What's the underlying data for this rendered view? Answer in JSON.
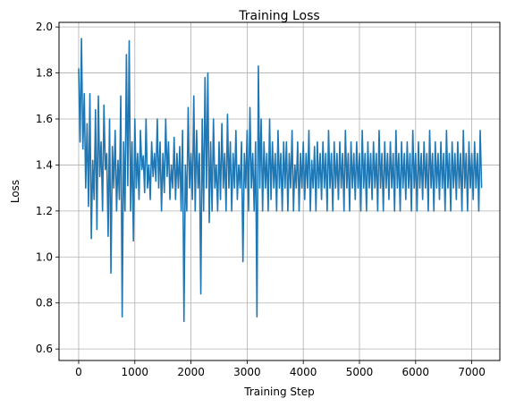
{
  "chart_data": {
    "type": "line",
    "title": "Training Loss",
    "xlabel": "Training Step",
    "ylabel": "Loss",
    "xlim": [
      -350,
      7500
    ],
    "ylim": [
      0.55,
      2.02
    ],
    "grid": true,
    "x_ticks": [
      0,
      1000,
      2000,
      3000,
      4000,
      5000,
      6000,
      7000
    ],
    "x_tick_labels": [
      "0",
      "1000",
      "2000",
      "3000",
      "4000",
      "5000",
      "6000",
      "7000"
    ],
    "y_ticks": [
      0.6,
      0.8,
      1.0,
      1.2,
      1.4,
      1.6,
      1.8,
      2.0
    ],
    "y_tick_labels": [
      "0.6",
      "0.8",
      "1.0",
      "1.2",
      "1.4",
      "1.6",
      "1.8",
      "2.0"
    ],
    "colors": {
      "line": "#1f77b4",
      "grid": "#b0b0b0",
      "axes": "#000000"
    },
    "series": [
      {
        "x_step": 25,
        "values": [
          1.82,
          1.5,
          1.95,
          1.47,
          1.71,
          1.3,
          1.58,
          1.22,
          1.71,
          1.08,
          1.42,
          1.25,
          1.64,
          1.12,
          1.7,
          1.35,
          1.5,
          1.2,
          1.66,
          1.38,
          1.45,
          1.09,
          1.6,
          0.93,
          1.48,
          1.3,
          1.55,
          1.2,
          1.42,
          1.25,
          1.7,
          0.74,
          1.5,
          1.2,
          1.88,
          1.31,
          1.94,
          1.2,
          1.5,
          1.07,
          1.6,
          1.3,
          1.45,
          1.25,
          1.55,
          1.38,
          1.44,
          1.28,
          1.6,
          1.3,
          1.4,
          1.25,
          1.5,
          1.35,
          1.45,
          1.33,
          1.6,
          1.3,
          1.5,
          1.2,
          1.45,
          1.28,
          1.6,
          1.35,
          1.5,
          1.25,
          1.4,
          1.3,
          1.52,
          1.25,
          1.45,
          1.3,
          1.48,
          1.2,
          1.55,
          0.72,
          1.4,
          1.2,
          1.65,
          1.3,
          1.45,
          1.25,
          1.7,
          1.2,
          1.55,
          1.3,
          1.45,
          0.84,
          1.6,
          1.2,
          1.78,
          1.3,
          1.8,
          1.15,
          1.5,
          1.2,
          1.6,
          1.3,
          1.4,
          1.2,
          1.5,
          1.25,
          1.58,
          1.3,
          1.45,
          1.2,
          1.62,
          1.3,
          1.5,
          1.2,
          1.45,
          1.3,
          1.55,
          1.25,
          1.4,
          1.3,
          1.5,
          0.98,
          1.45,
          1.3,
          1.55,
          1.2,
          1.65,
          1.3,
          1.45,
          1.2,
          1.5,
          0.74,
          1.83,
          1.3,
          1.6,
          1.2,
          1.5,
          1.3,
          1.45,
          1.2,
          1.6,
          1.25,
          1.5,
          1.3,
          1.45,
          1.2,
          1.55,
          1.3,
          1.45,
          1.2,
          1.5,
          1.3,
          1.5,
          1.2,
          1.45,
          1.3,
          1.55,
          1.2,
          1.4,
          1.3,
          1.5,
          1.2,
          1.45,
          1.3,
          1.5,
          1.25,
          1.45,
          1.3,
          1.55,
          1.2,
          1.42,
          1.3,
          1.48,
          1.2,
          1.5,
          1.3,
          1.45,
          1.25,
          1.5,
          1.3,
          1.45,
          1.2,
          1.55,
          1.3,
          1.45,
          1.2,
          1.5,
          1.3,
          1.45,
          1.25,
          1.5,
          1.3,
          1.45,
          1.2,
          1.55,
          1.3,
          1.45,
          1.2,
          1.5,
          1.3,
          1.45,
          1.25,
          1.5,
          1.3,
          1.45,
          1.2,
          1.55,
          1.3,
          1.45,
          1.2,
          1.5,
          1.3,
          1.45,
          1.25,
          1.5,
          1.3,
          1.45,
          1.2,
          1.55,
          1.3,
          1.45,
          1.2,
          1.5,
          1.3,
          1.45,
          1.25,
          1.5,
          1.3,
          1.45,
          1.2,
          1.55,
          1.3,
          1.45,
          1.2,
          1.5,
          1.3,
          1.45,
          1.25,
          1.5,
          1.3,
          1.45,
          1.2,
          1.55,
          1.3,
          1.45,
          1.2,
          1.5,
          1.3,
          1.45,
          1.25,
          1.5,
          1.3,
          1.45,
          1.2,
          1.55,
          1.3,
          1.45,
          1.2,
          1.5,
          1.3,
          1.45,
          1.25,
          1.5,
          1.3,
          1.45,
          1.2,
          1.55,
          1.3,
          1.45,
          1.2,
          1.5,
          1.3,
          1.45,
          1.25,
          1.5,
          1.3,
          1.45,
          1.2,
          1.55,
          1.3,
          1.45,
          1.2,
          1.5,
          1.3,
          1.45,
          1.25,
          1.5,
          1.3,
          1.45,
          1.2,
          1.55,
          1.3
        ]
      }
    ]
  }
}
